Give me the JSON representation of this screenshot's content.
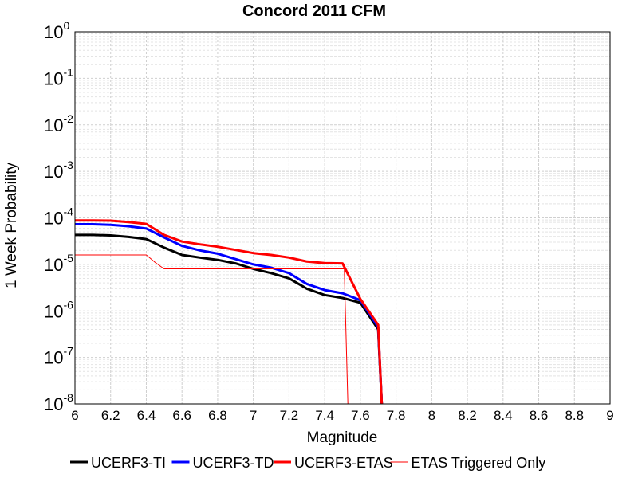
{
  "chart_data": {
    "type": "line",
    "title": "Concord 2011 CFM",
    "xlabel": "Magnitude",
    "ylabel": "1 Week Probability",
    "xlim": [
      6,
      9
    ],
    "ylim": [
      1e-08,
      1
    ],
    "yscale": "log",
    "grid": true,
    "legend_position": "bottom",
    "x_ticks": [
      "6",
      "6.2",
      "6.4",
      "6.6",
      "6.8",
      "7",
      "7.2",
      "7.4",
      "7.6",
      "7.8",
      "8",
      "8.2",
      "8.4",
      "8.6",
      "8.8",
      "9"
    ],
    "y_ticks": [
      {
        "base": "10",
        "exp": "0"
      },
      {
        "base": "10",
        "exp": "-1"
      },
      {
        "base": "10",
        "exp": "-2"
      },
      {
        "base": "10",
        "exp": "-3"
      },
      {
        "base": "10",
        "exp": "-4"
      },
      {
        "base": "10",
        "exp": "-5"
      },
      {
        "base": "10",
        "exp": "-6"
      },
      {
        "base": "10",
        "exp": "-7"
      },
      {
        "base": "10",
        "exp": "-8"
      }
    ],
    "series": [
      {
        "name": "UCERF3-TI",
        "color": "#000000",
        "width": 3,
        "x": [
          6.0,
          6.1,
          6.2,
          6.3,
          6.4,
          6.5,
          6.6,
          6.7,
          6.8,
          6.9,
          7.0,
          7.1,
          7.2,
          7.3,
          7.4,
          7.5,
          7.6,
          7.7,
          7.72
        ],
        "y": [
          4.3e-05,
          4.3e-05,
          4.2e-05,
          3.9e-05,
          3.5e-05,
          2.3e-05,
          1.6e-05,
          1.4e-05,
          1.25e-05,
          1.05e-05,
          8e-06,
          6.5e-06,
          5e-06,
          3e-06,
          2.2e-06,
          1.9e-06,
          1.5e-06,
          4e-07,
          1e-08
        ]
      },
      {
        "name": "UCERF3-TD",
        "color": "#0000ff",
        "width": 3,
        "x": [
          6.0,
          6.1,
          6.2,
          6.3,
          6.4,
          6.5,
          6.6,
          6.7,
          6.8,
          6.9,
          7.0,
          7.1,
          7.2,
          7.3,
          7.4,
          7.5,
          7.6,
          7.7,
          7.72
        ],
        "y": [
          7.3e-05,
          7.3e-05,
          7.1e-05,
          6.6e-05,
          5.9e-05,
          3.8e-05,
          2.5e-05,
          2e-05,
          1.7e-05,
          1.3e-05,
          1e-05,
          8.5e-06,
          6.5e-06,
          3.8e-06,
          2.8e-06,
          2.4e-06,
          1.7e-06,
          4.5e-07,
          1e-08
        ]
      },
      {
        "name": "UCERF3-ETAS",
        "color": "#ff0000",
        "width": 3,
        "x": [
          6.0,
          6.1,
          6.2,
          6.3,
          6.4,
          6.5,
          6.6,
          6.7,
          6.8,
          6.9,
          7.0,
          7.1,
          7.2,
          7.3,
          7.4,
          7.5,
          7.6,
          7.7,
          7.72
        ],
        "y": [
          8.8e-05,
          8.8e-05,
          8.7e-05,
          8.1e-05,
          7.4e-05,
          4.3e-05,
          3.1e-05,
          2.7e-05,
          2.4e-05,
          2.05e-05,
          1.75e-05,
          1.6e-05,
          1.4e-05,
          1.15e-05,
          1.07e-05,
          1.05e-05,
          1.8e-06,
          5e-07,
          1e-08
        ]
      },
      {
        "name": "ETAS Triggered Only",
        "color": "#ff0000",
        "width": 1,
        "x": [
          6.0,
          6.1,
          6.2,
          6.3,
          6.4,
          6.45,
          6.5,
          6.6,
          6.7,
          6.8,
          6.9,
          7.0,
          7.1,
          7.2,
          7.3,
          7.4,
          7.5,
          7.51,
          7.53
        ],
        "y": [
          1.6e-05,
          1.6e-05,
          1.6e-05,
          1.6e-05,
          1.6e-05,
          1.1e-05,
          8e-06,
          8e-06,
          8e-06,
          8e-06,
          8e-06,
          8e-06,
          8e-06,
          8e-06,
          8e-06,
          8e-06,
          8e-06,
          8e-06,
          1e-08
        ]
      }
    ]
  }
}
